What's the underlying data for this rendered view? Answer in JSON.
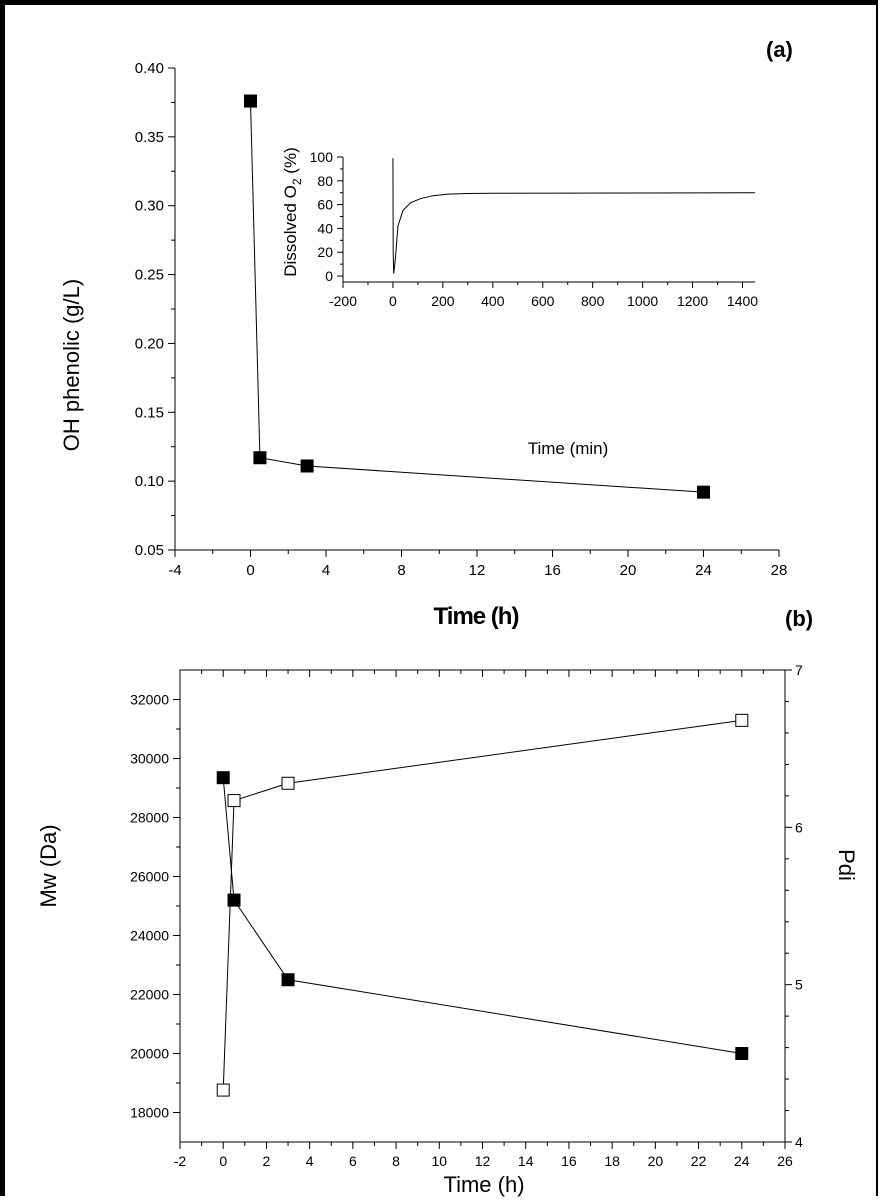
{
  "chart_data": [
    {
      "type": "scatter",
      "panel_label": "(a)",
      "xlabel": "Time (h)",
      "ylabel": "OH phenolic (g/L)",
      "xlim": [
        -4,
        28
      ],
      "ylim": [
        0.05,
        0.4
      ],
      "xticks": [
        -4,
        0,
        4,
        8,
        12,
        16,
        20,
        24,
        28
      ],
      "yticks": [
        0.05,
        0.1,
        0.15,
        0.2,
        0.25,
        0.3,
        0.35,
        0.4
      ],
      "xtick_labels": [
        "-4",
        "0",
        "4",
        "8",
        "12",
        "16",
        "20",
        "24",
        "28"
      ],
      "ytick_labels": [
        "0.05",
        "0.10",
        "0.15",
        "0.20",
        "0.25",
        "0.30",
        "0.35",
        "0.40"
      ],
      "series": [
        {
          "marker": "filled-square",
          "line": true,
          "x": [
            0,
            0.5,
            3,
            24
          ],
          "y": [
            0.376,
            0.117,
            0.111,
            0.092
          ]
        }
      ],
      "inset": {
        "type": "line",
        "xlabel": "Time (min)",
        "ylabel": "Dissolved O2 (%)",
        "xlim": [
          -200,
          1450
        ],
        "ylim": [
          -5,
          100
        ],
        "xticks": [
          -200,
          0,
          200,
          400,
          600,
          800,
          1000,
          1200,
          1400
        ],
        "yticks": [
          0,
          20,
          40,
          60,
          80,
          100
        ],
        "xtick_labels": [
          "-200",
          "0",
          "200",
          "400",
          "600",
          "800",
          "1000",
          "1200",
          "1400"
        ],
        "ytick_labels": [
          "0",
          "20",
          "40",
          "60",
          "80",
          "100"
        ],
        "series": [
          {
            "x": [
              0,
              1,
              3,
              10,
              20,
              40,
              70,
              110,
              160,
              220,
              300,
              400,
              700,
              1000,
              1450
            ],
            "y": [
              99,
              20,
              2,
              15,
              42,
              55,
              61.5,
              65,
              67.5,
              68.8,
              69.3,
              69.5,
              69.7,
              69.8,
              70
            ]
          }
        ]
      }
    },
    {
      "type": "scatter",
      "panel_label": "(b)",
      "xlabel": "Time (h)",
      "ylabel": "Mw (Da)",
      "y2label": "Pdi",
      "xlim": [
        -2,
        26
      ],
      "ylim": [
        17000,
        33000
      ],
      "y2lim": [
        4,
        7
      ],
      "xticks": [
        -2,
        0,
        2,
        4,
        6,
        8,
        10,
        12,
        14,
        16,
        18,
        20,
        22,
        24,
        26
      ],
      "yticks": [
        18000,
        20000,
        22000,
        24000,
        26000,
        28000,
        30000,
        32000
      ],
      "y2ticks": [
        4,
        5,
        6,
        7
      ],
      "xtick_labels": [
        "-2",
        "0",
        "2",
        "4",
        "6",
        "8",
        "10",
        "12",
        "14",
        "16",
        "18",
        "20",
        "22",
        "24",
        "26"
      ],
      "ytick_labels": [
        "18000",
        "20000",
        "22000",
        "24000",
        "26000",
        "28000",
        "30000",
        "32000"
      ],
      "y2tick_labels": [
        "4",
        "5",
        "6",
        "7"
      ],
      "series": [
        {
          "axis": "left",
          "marker": "filled-square",
          "x": [
            0,
            0.5,
            3,
            24
          ],
          "y": [
            29350,
            25200,
            22500,
            20000
          ]
        },
        {
          "axis": "right",
          "marker": "open-square",
          "x": [
            0,
            0.5,
            3,
            24
          ],
          "y": [
            4.33,
            6.17,
            6.28,
            6.68
          ]
        }
      ]
    }
  ]
}
